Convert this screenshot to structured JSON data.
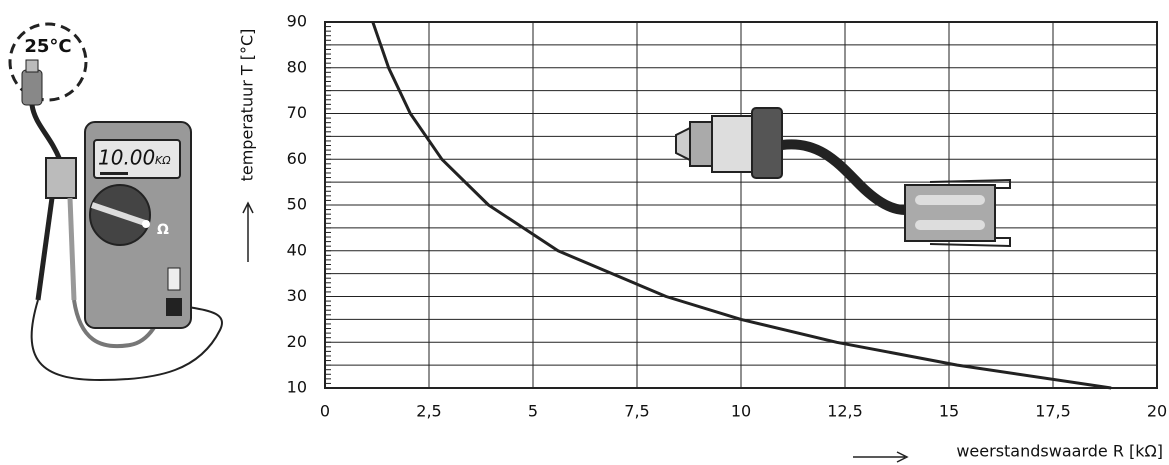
{
  "chart_data": {
    "type": "line",
    "x_label": "weerstandswaarde R [kΩ]",
    "y_label": "temperatuur T [°C]",
    "x": [
      1.15,
      1.53,
      2.05,
      2.81,
      3.93,
      5.6,
      8.2,
      10,
      12.3,
      15.2,
      18.9
    ],
    "values": [
      90,
      80,
      70,
      60,
      50,
      40,
      30,
      25,
      20,
      15,
      10
    ],
    "color": "#222222",
    "xlim": [
      0,
      20
    ],
    "xticks": [
      0,
      {
        "value": 2.5,
        "label": "2,5"
      },
      5,
      {
        "value": 7.5,
        "label": "7,5"
      },
      10,
      {
        "value": 12.5,
        "label": "12,5"
      },
      15,
      {
        "value": 17.5,
        "label": "17,5"
      },
      20
    ],
    "ylim": [
      10,
      90
    ],
    "yticks": [
      10,
      20,
      30,
      40,
      50,
      60,
      70,
      80,
      90
    ],
    "y_minor_grid": [
      15,
      25,
      35,
      45,
      55,
      65,
      75,
      85
    ],
    "grid": true
  },
  "illustration": {
    "thermometer": "25°C",
    "display": "10.00",
    "display_unit": "KΩ",
    "dial": "Ω"
  }
}
